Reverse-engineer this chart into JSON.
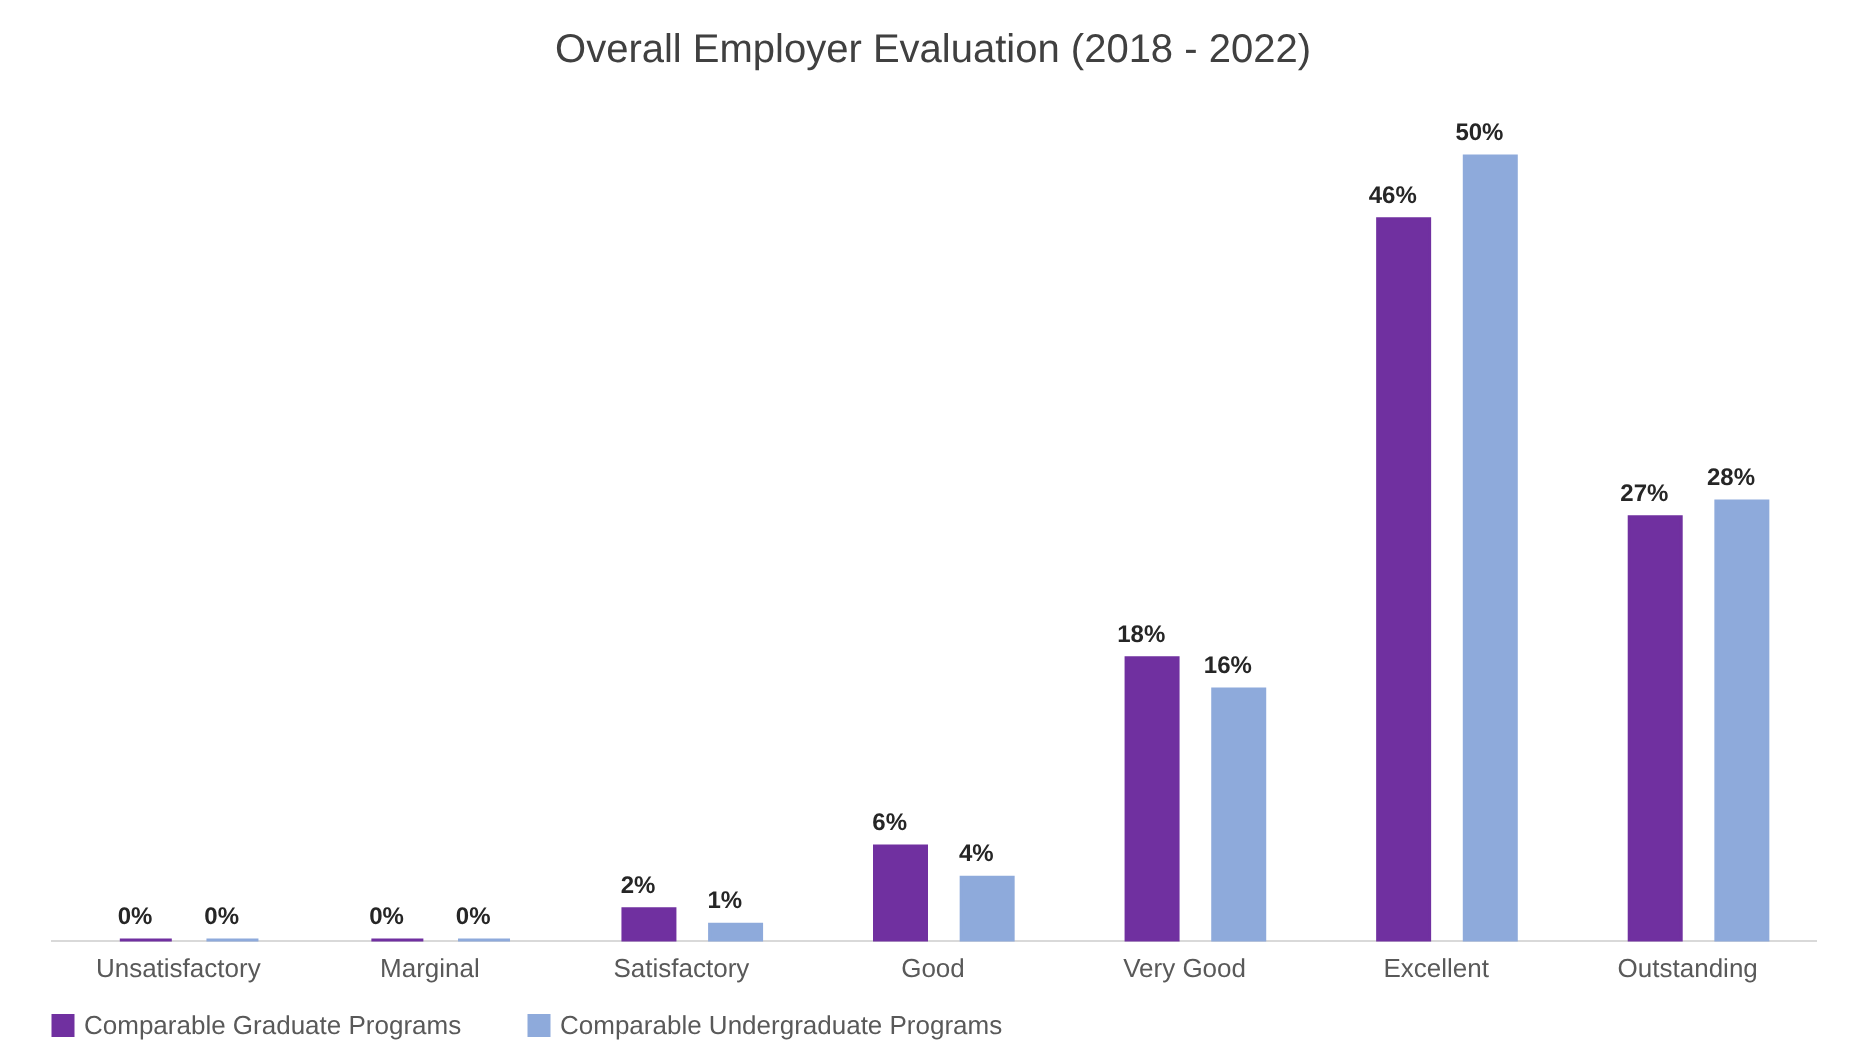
{
  "chart_data": {
    "type": "bar",
    "title": "Overall Employer Evaluation (2018 - 2022)",
    "categories": [
      "Unsatisfactory",
      "Marginal",
      "Satisfactory",
      "Good",
      "Very Good",
      "Excellent",
      "Outstanding"
    ],
    "series": [
      {
        "name": "Comparable Graduate Programs",
        "color": "#7030a0",
        "values": [
          0,
          0,
          2,
          6,
          18,
          46,
          27
        ],
        "value_labels": [
          "0%",
          "0%",
          "2%",
          "6%",
          "18%",
          "46%",
          "27%"
        ]
      },
      {
        "name": "Comparable Undergraduate Programs",
        "color": "#8eaadb",
        "values": [
          0,
          0,
          1,
          4,
          16,
          50,
          28
        ],
        "value_labels": [
          "0%",
          "0%",
          "1%",
          "4%",
          "16%",
          "50%",
          "28%"
        ]
      }
    ],
    "legend": "bottom",
    "grid": false,
    "tick_labels": "x"
  }
}
